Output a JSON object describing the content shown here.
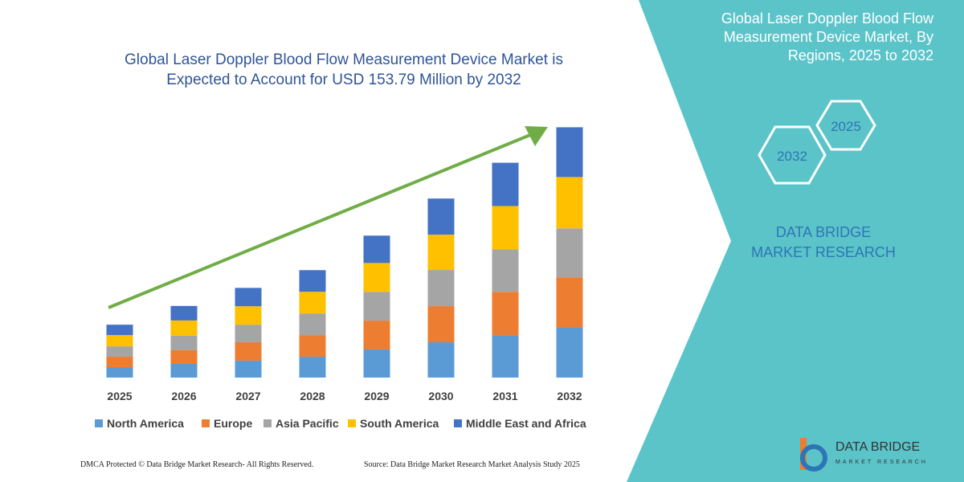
{
  "chart_data": {
    "type": "stacked_bar",
    "title": "Global Laser Doppler Blood Flow Measurement Device Market is Expected to Account for USD 153.79 Million by 2032",
    "categories": [
      "2025",
      "2026",
      "2027",
      "2028",
      "2029",
      "2030",
      "2031",
      "2032"
    ],
    "series": [
      {
        "name": "North America",
        "color": "#5b9bd5",
        "values": [
          6.4,
          8.4,
          10.4,
          12.8,
          17.3,
          21.7,
          26.1,
          30.6
        ]
      },
      {
        "name": "Europe",
        "color": "#ed7d31",
        "values": [
          6.4,
          8.4,
          11.3,
          13.3,
          17.7,
          22.2,
          26.6,
          31.0
        ]
      },
      {
        "name": "Asia Pacific",
        "color": "#a5a5a5",
        "values": [
          6.4,
          8.9,
          10.8,
          13.3,
          17.7,
          22.2,
          26.1,
          30.1
        ]
      },
      {
        "name": "South America",
        "color": "#ffc000",
        "values": [
          6.9,
          9.4,
          11.3,
          13.3,
          17.7,
          21.7,
          26.6,
          31.5
        ]
      },
      {
        "name": "Middle East and Africa",
        "color": "#4472c4",
        "values": [
          6.4,
          8.9,
          11.3,
          13.3,
          16.8,
          22.2,
          26.6,
          30.6
        ]
      }
    ],
    "ylim": [
      0,
      154
    ],
    "trend_color": "#70ad47"
  },
  "panel": {
    "title": "Global Laser Doppler Blood Flow Measurement Device Market, By Regions, 2025 to 2032",
    "hexagons": [
      "2025",
      "2032"
    ],
    "brand": "DATA BRIDGE MARKET RESEARCH"
  },
  "logo": {
    "name": "DATA BRIDGE",
    "tagline": "MARKET RESEARCH"
  },
  "footer": {
    "left": "DMCA Protected © Data Bridge Market Research-  All Rights Reserved.",
    "right": "Source: Data Bridge Market Research  Market Analysis Study 2025"
  }
}
